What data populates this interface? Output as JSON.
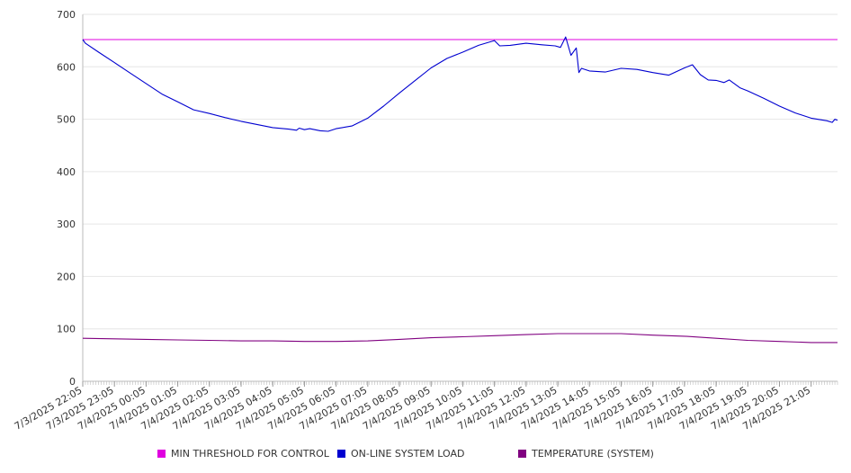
{
  "chart_data": {
    "type": "line",
    "title": "",
    "xlabel": "",
    "ylabel": "",
    "ylim": [
      0,
      700
    ],
    "yticks": [
      0,
      100,
      200,
      300,
      400,
      500,
      600,
      700
    ],
    "grid": true,
    "legend_position": "bottom",
    "x_start": "7/3/2025 22:05",
    "x_end": "7/4/2025 21:55",
    "x_tick_labels": [
      "7/3/2025 22:05",
      "7/3/2025 23:05",
      "7/4/2025 00:05",
      "7/4/2025 01:05",
      "7/4/2025 02:05",
      "7/4/2025 03:05",
      "7/4/2025 04:05",
      "7/4/2025 05:05",
      "7/4/2025 06:05",
      "7/4/2025 07:05",
      "7/4/2025 08:05",
      "7/4/2025 09:05",
      "7/4/2025 10:05",
      "7/4/2025 11:05",
      "7/4/2025 12:05",
      "7/4/2025 13:05",
      "7/4/2025 14:05",
      "7/4/2025 15:05",
      "7/4/2025 16:05",
      "7/4/2025 17:05",
      "7/4/2025 18:05",
      "7/4/2025 19:05",
      "7/4/2025 20:05",
      "7/4/2025 21:05"
    ],
    "series": [
      {
        "name": "MIN THRESHOLD FOR CONTROL",
        "color": "#e000e0",
        "points": [
          [
            "7/3/2025 22:05",
            652
          ],
          [
            "7/4/2025 21:55",
            652
          ]
        ]
      },
      {
        "name": "ON-LINE SYSTEM LOAD",
        "color": "#0000d0",
        "points": [
          [
            "7/3/2025 22:05",
            652
          ],
          [
            "7/3/2025 22:10",
            645
          ],
          [
            "7/3/2025 22:35",
            628
          ],
          [
            "7/3/2025 23:05",
            608
          ],
          [
            "7/3/2025 23:35",
            588
          ],
          [
            "7/4/2025 00:05",
            568
          ],
          [
            "7/4/2025 00:35",
            548
          ],
          [
            "7/4/2025 01:05",
            533
          ],
          [
            "7/4/2025 01:35",
            518
          ],
          [
            "7/4/2025 02:05",
            511
          ],
          [
            "7/4/2025 02:35",
            503
          ],
          [
            "7/4/2025 03:05",
            496
          ],
          [
            "7/4/2025 03:35",
            490
          ],
          [
            "7/4/2025 04:05",
            484
          ],
          [
            "7/4/2025 04:35",
            481
          ],
          [
            "7/4/2025 04:50",
            479
          ],
          [
            "7/4/2025 04:55",
            483
          ],
          [
            "7/4/2025 05:05",
            480
          ],
          [
            "7/4/2025 05:15",
            482
          ],
          [
            "7/4/2025 05:35",
            478
          ],
          [
            "7/4/2025 05:50",
            477
          ],
          [
            "7/4/2025 06:05",
            482
          ],
          [
            "7/4/2025 06:35",
            487
          ],
          [
            "7/4/2025 07:05",
            502
          ],
          [
            "7/4/2025 07:35",
            525
          ],
          [
            "7/4/2025 08:05",
            550
          ],
          [
            "7/4/2025 08:35",
            574
          ],
          [
            "7/4/2025 09:05",
            598
          ],
          [
            "7/4/2025 09:35",
            616
          ],
          [
            "7/4/2025 10:05",
            628
          ],
          [
            "7/4/2025 10:35",
            641
          ],
          [
            "7/4/2025 11:05",
            650
          ],
          [
            "7/4/2025 11:15",
            640
          ],
          [
            "7/4/2025 11:35",
            641
          ],
          [
            "7/4/2025 12:05",
            645
          ],
          [
            "7/4/2025 12:35",
            642
          ],
          [
            "7/4/2025 13:00",
            640
          ],
          [
            "7/4/2025 13:10",
            637
          ],
          [
            "7/4/2025 13:20",
            657
          ],
          [
            "7/4/2025 13:30",
            622
          ],
          [
            "7/4/2025 13:40",
            636
          ],
          [
            "7/4/2025 13:45",
            589
          ],
          [
            "7/4/2025 13:50",
            597
          ],
          [
            "7/4/2025 14:05",
            592
          ],
          [
            "7/4/2025 14:35",
            590
          ],
          [
            "7/4/2025 15:05",
            597
          ],
          [
            "7/4/2025 15:35",
            595
          ],
          [
            "7/4/2025 16:05",
            589
          ],
          [
            "7/4/2025 16:35",
            584
          ],
          [
            "7/4/2025 17:05",
            598
          ],
          [
            "7/4/2025 17:20",
            604
          ],
          [
            "7/4/2025 17:35",
            585
          ],
          [
            "7/4/2025 17:50",
            575
          ],
          [
            "7/4/2025 18:05",
            574
          ],
          [
            "7/4/2025 18:20",
            570
          ],
          [
            "7/4/2025 18:30",
            575
          ],
          [
            "7/4/2025 18:50",
            560
          ],
          [
            "7/4/2025 19:05",
            554
          ],
          [
            "7/4/2025 19:35",
            540
          ],
          [
            "7/4/2025 20:05",
            525
          ],
          [
            "7/4/2025 20:35",
            512
          ],
          [
            "7/4/2025 21:05",
            502
          ],
          [
            "7/4/2025 21:35",
            497
          ],
          [
            "7/4/2025 21:45",
            494
          ],
          [
            "7/4/2025 21:50",
            500
          ],
          [
            "7/4/2025 21:55",
            498
          ]
        ]
      },
      {
        "name": "TEMPERATURE (SYSTEM)",
        "color": "#800080",
        "points": [
          [
            "7/3/2025 22:05",
            82
          ],
          [
            "7/3/2025 23:05",
            81
          ],
          [
            "7/4/2025 00:05",
            80
          ],
          [
            "7/4/2025 01:05",
            79
          ],
          [
            "7/4/2025 02:05",
            78
          ],
          [
            "7/4/2025 03:05",
            77
          ],
          [
            "7/4/2025 04:05",
            77
          ],
          [
            "7/4/2025 05:05",
            76
          ],
          [
            "7/4/2025 06:05",
            76
          ],
          [
            "7/4/2025 07:05",
            77
          ],
          [
            "7/4/2025 08:05",
            80
          ],
          [
            "7/4/2025 09:05",
            83
          ],
          [
            "7/4/2025 10:05",
            85
          ],
          [
            "7/4/2025 11:05",
            87
          ],
          [
            "7/4/2025 12:05",
            89
          ],
          [
            "7/4/2025 13:05",
            91
          ],
          [
            "7/4/2025 14:05",
            91
          ],
          [
            "7/4/2025 15:05",
            91
          ],
          [
            "7/4/2025 16:05",
            88
          ],
          [
            "7/4/2025 17:05",
            86
          ],
          [
            "7/4/2025 18:05",
            82
          ],
          [
            "7/4/2025 19:05",
            78
          ],
          [
            "7/4/2025 20:05",
            76
          ],
          [
            "7/4/2025 21:05",
            74
          ],
          [
            "7/4/2025 21:55",
            74
          ]
        ]
      }
    ]
  }
}
